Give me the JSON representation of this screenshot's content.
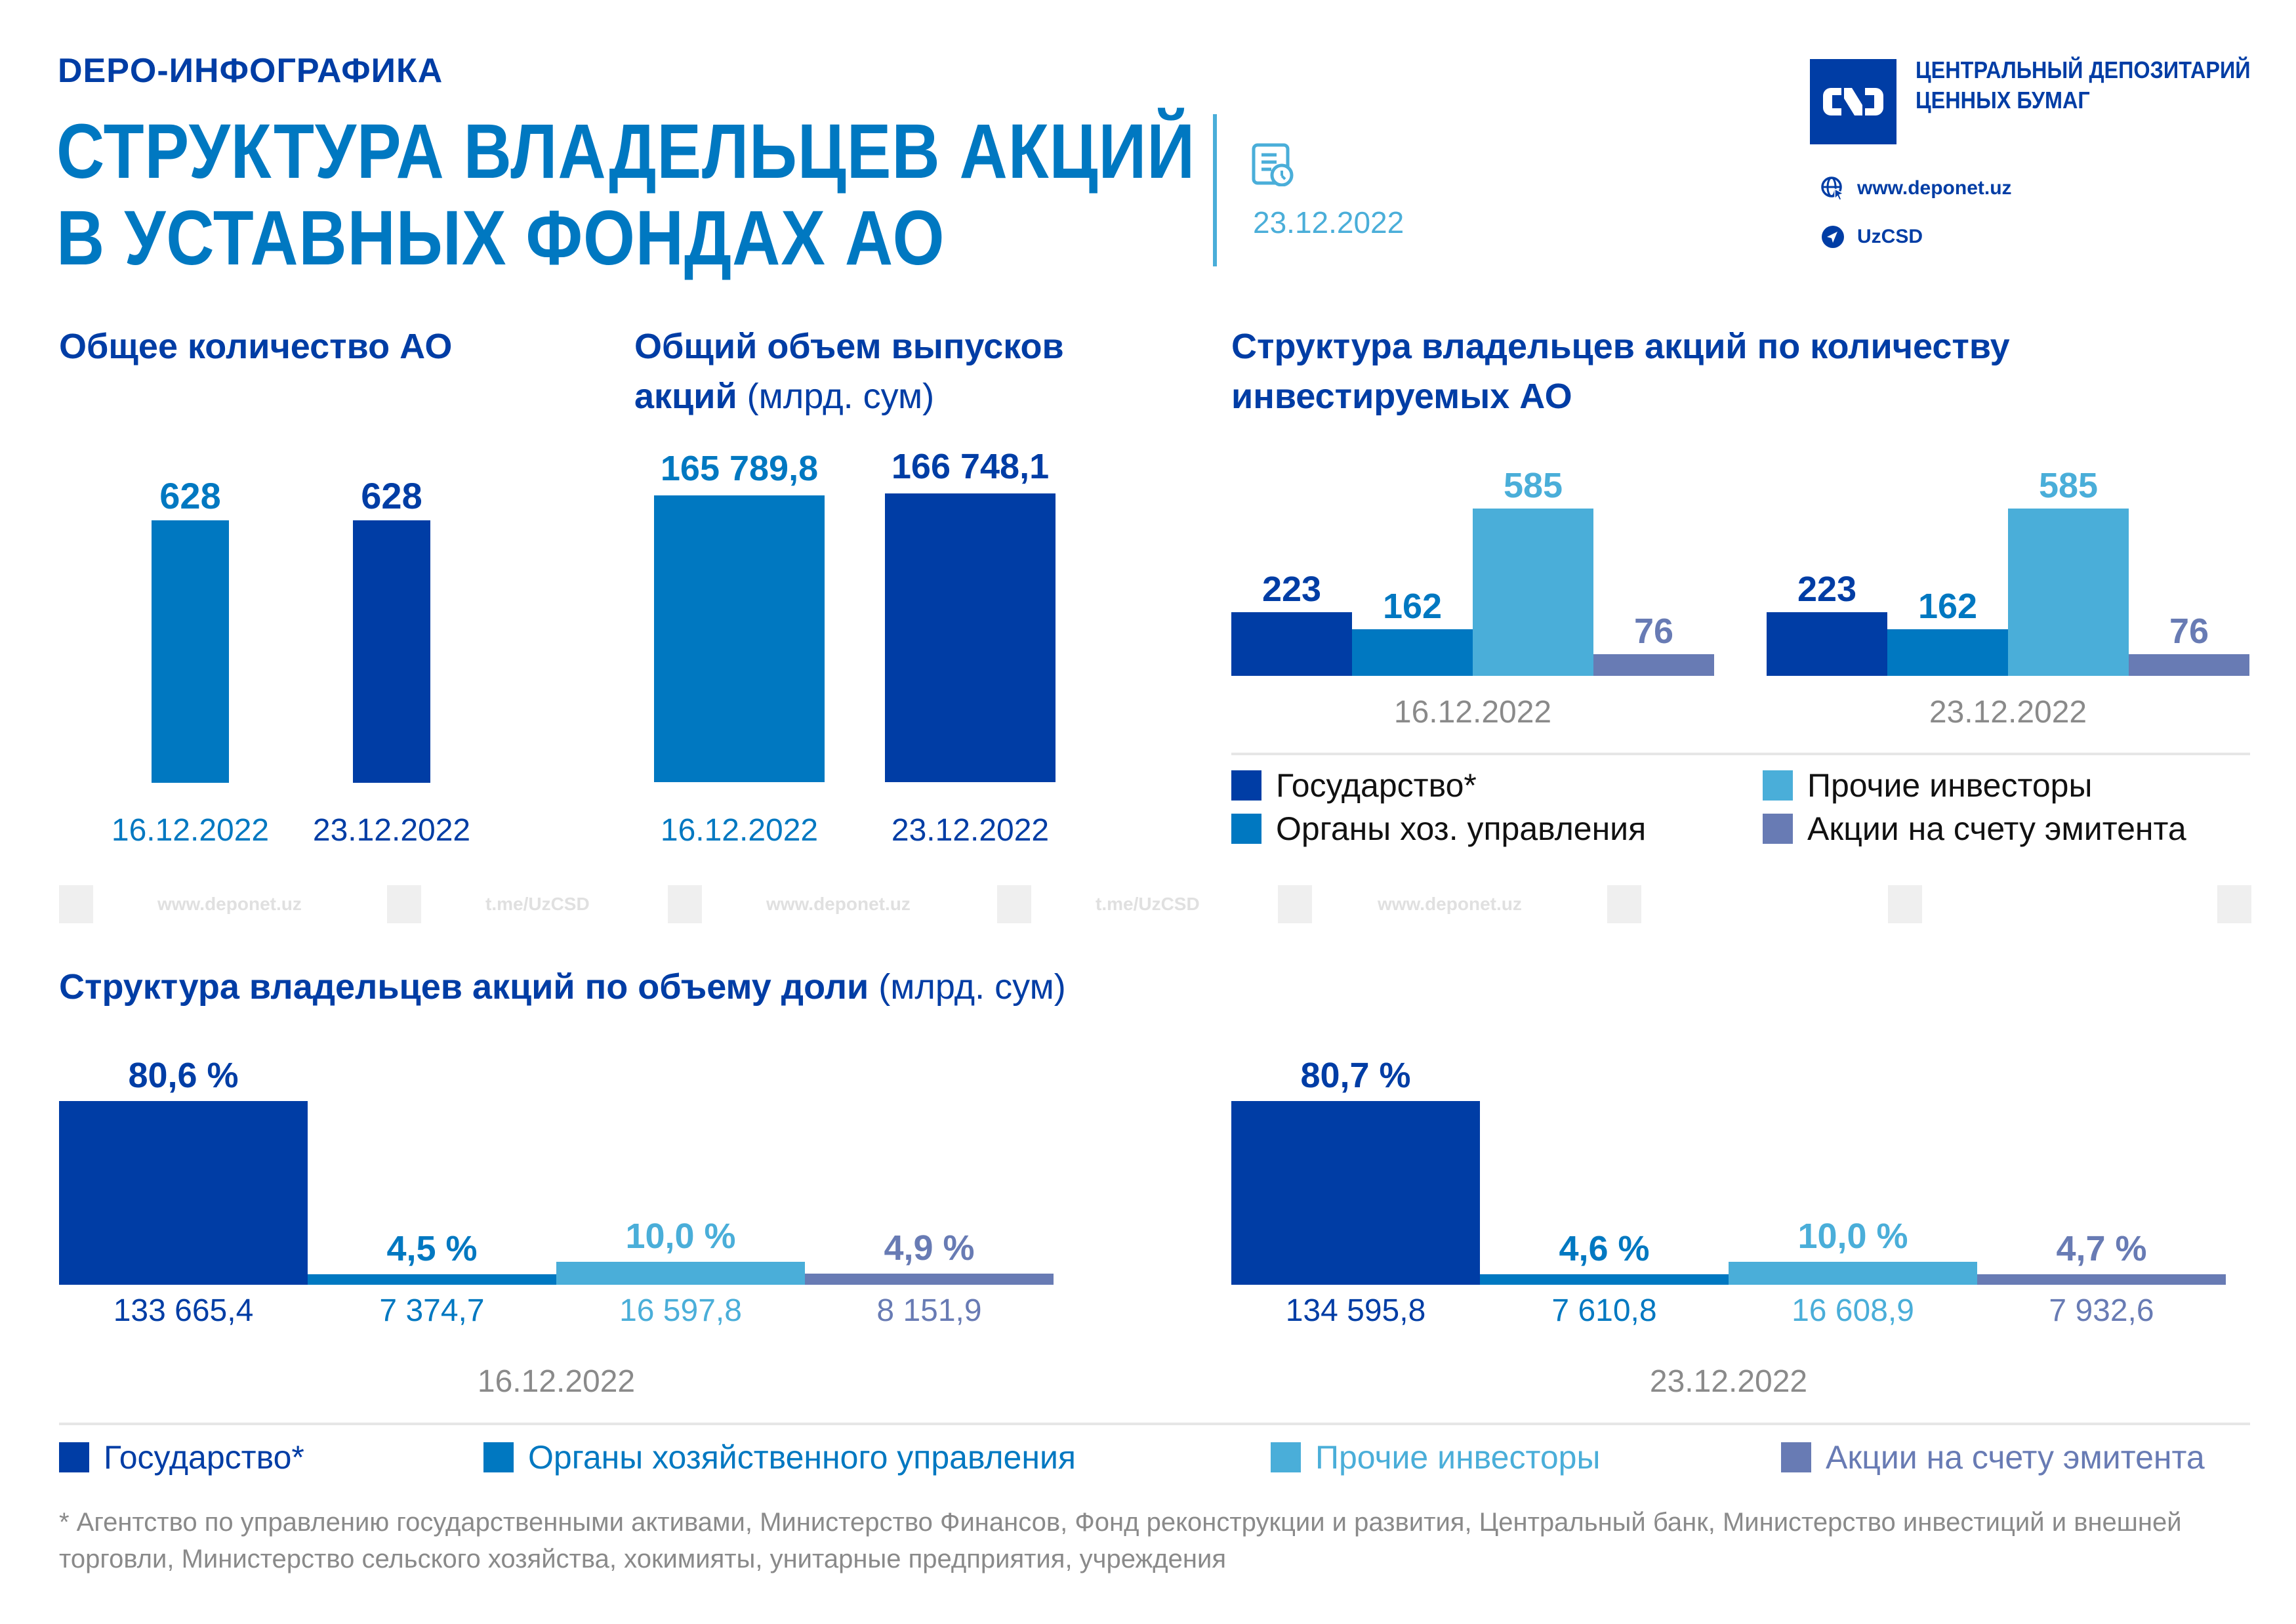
{
  "header": {
    "kicker": "DEPO-ИНФОГРАФИКА",
    "title_line1": "СТРУКТУРА ВЛАДЕЛЬЦЕВ АКЦИЙ",
    "title_line2": "В УСТАВНЫХ ФОНДАХ АО",
    "date": "23.12.2022",
    "date_icon": "document-clock-icon"
  },
  "brand": {
    "logo_icon": "csd-logo-icon",
    "logo_text": "CSD",
    "name_line1": "ЦЕНТРАЛЬНЫЙ ДЕПОЗИТАРИЙ",
    "name_line2": "ЦЕННЫХ БУМАГ",
    "website": "www.deponet.uz",
    "website_icon": "globe-cursor-icon",
    "telegram": "UzCSD",
    "telegram_icon": "telegram-icon"
  },
  "colors": {
    "state": "#003da5",
    "mgmt": "#0078c1",
    "other": "#4aaed9",
    "issuer": "#687bb4",
    "gray_text": "#8a8a8a"
  },
  "watermark": {
    "items": [
      "www.deponet.uz",
      "t.me/UzCSD",
      "www.deponet.uz",
      "t.me/UzCSD",
      "www.deponet.uz"
    ]
  },
  "footnote": "* Агентство по управлению государственными активами, Министерство Финансов, Фонд реконструкции и развития, Центральный банк, Министерство инвестиций и внешней торговли, Министерство сельского хозяйства, хокимияты, унитарные предприятия, учреждения",
  "chart_data": [
    {
      "id": "total-jsc",
      "type": "bar",
      "title": "Общее количество АО",
      "categories": [
        "16.12.2022",
        "23.12.2022"
      ],
      "values": [
        628,
        628
      ],
      "labels": [
        "628",
        "628"
      ],
      "ylim": [
        0,
        700
      ]
    },
    {
      "id": "total-volume",
      "type": "bar",
      "title": "Общий объем выпусков акций",
      "unit": "(млрд. сум)",
      "categories": [
        "16.12.2022",
        "23.12.2022"
      ],
      "values": [
        165789.8,
        166748.1
      ],
      "labels": [
        "165 789,8",
        "166 748,1"
      ],
      "ylim": [
        0,
        180000
      ]
    },
    {
      "id": "owners-by-count",
      "type": "bar",
      "title": "Структура владельцев акций по количеству инвестируемых АО",
      "categories": [
        "16.12.2022",
        "23.12.2022"
      ],
      "series": [
        {
          "name": "Государство*",
          "values": [
            223,
            223
          ],
          "labels": [
            "223",
            "223"
          ]
        },
        {
          "name": "Органы хоз. управления",
          "values": [
            162,
            162
          ],
          "labels": [
            "162",
            "162"
          ]
        },
        {
          "name": "Прочие инвесторы",
          "values": [
            585,
            585
          ],
          "labels": [
            "585",
            "585"
          ]
        },
        {
          "name": "Акции на счету эмитента",
          "values": [
            76,
            76
          ],
          "labels": [
            "76",
            "76"
          ]
        }
      ],
      "ylim": [
        0,
        650
      ],
      "legend": "bottom"
    },
    {
      "id": "owners-by-volume",
      "type": "bar",
      "title": "Структура владельцев акций по объему доли",
      "unit": "(млрд. сум)",
      "categories": [
        "16.12.2022",
        "23.12.2022"
      ],
      "series": [
        {
          "name": "Государство*",
          "percent": [
            80.6,
            80.7
          ],
          "percent_labels": [
            "80,6 %",
            "80,7 %"
          ],
          "values": [
            133665.4,
            134595.8
          ],
          "value_labels": [
            "133 665,4",
            "134 595,8"
          ]
        },
        {
          "name": "Органы хозяйственного управления",
          "percent": [
            4.5,
            4.6
          ],
          "percent_labels": [
            "4,5 %",
            "4,6 %"
          ],
          "values": [
            7374.7,
            7610.8
          ],
          "value_labels": [
            "7 374,7",
            "7 610,8"
          ]
        },
        {
          "name": "Прочие инвесторы",
          "percent": [
            10.0,
            10.0
          ],
          "percent_labels": [
            "10,0 %",
            "10,0 %"
          ],
          "values": [
            16597.8,
            16608.9
          ],
          "value_labels": [
            "16 597,8",
            "16 608,9"
          ]
        },
        {
          "name": "Акции на счету эмитента",
          "percent": [
            4.9,
            4.7
          ],
          "percent_labels": [
            "4,9 %",
            "4,7 %"
          ],
          "values": [
            8151.9,
            7932.6
          ],
          "value_labels": [
            "8 151,9",
            "7 932,6"
          ]
        }
      ],
      "ylim": [
        0,
        85
      ],
      "legend": "bottom"
    }
  ]
}
